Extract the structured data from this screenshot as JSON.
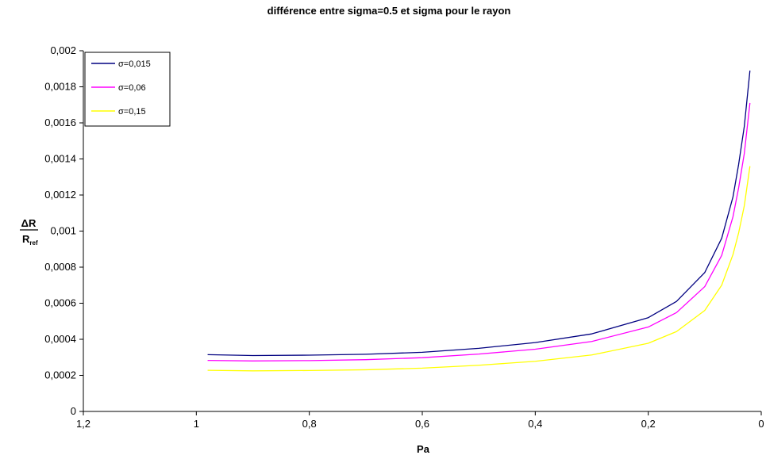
{
  "chart_data": {
    "type": "line",
    "title": "différence entre sigma=0.5 et sigma pour le rayon",
    "xlabel": "Pa",
    "ylabel": {
      "numerator": "ΔR",
      "denominator_main": "R",
      "denominator_sub": "ref"
    },
    "xlim": [
      1.2,
      0
    ],
    "ylim": [
      0,
      0.002
    ],
    "x_reversed": true,
    "x_ticks": [
      "1,2",
      "1",
      "0,8",
      "0,6",
      "0,4",
      "0,2",
      "0"
    ],
    "x_tick_values": [
      1.2,
      1.0,
      0.8,
      0.6,
      0.4,
      0.2,
      0.0
    ],
    "y_ticks": [
      "0",
      "0,0002",
      "0,0004",
      "0,0006",
      "0,0008",
      "0,001",
      "0,0012",
      "0,0014",
      "0,0016",
      "0,0018",
      "0,002"
    ],
    "y_tick_values": [
      0,
      0.0002,
      0.0004,
      0.0006,
      0.0008,
      0.001,
      0.0012,
      0.0014,
      0.0016,
      0.0018,
      0.002
    ],
    "grid": false,
    "legend_position": "top-left",
    "x": [
      0.98,
      0.9,
      0.8,
      0.7,
      0.6,
      0.5,
      0.4,
      0.3,
      0.2,
      0.15,
      0.1,
      0.07,
      0.05,
      0.04,
      0.03,
      0.02
    ],
    "series": [
      {
        "name": "σ=0,015",
        "color": "#000080",
        "values": [
          0.000315,
          0.00031,
          0.000312,
          0.000317,
          0.000328,
          0.00035,
          0.000382,
          0.00043,
          0.00052,
          0.00061,
          0.00077,
          0.00096,
          0.00119,
          0.00137,
          0.00158,
          0.00189
        ]
      },
      {
        "name": "σ=0,06",
        "color": "#ff00ff",
        "values": [
          0.000283,
          0.00028,
          0.000282,
          0.000287,
          0.000298,
          0.000318,
          0.000345,
          0.000388,
          0.000468,
          0.000548,
          0.000692,
          0.000865,
          0.00108,
          0.00124,
          0.00143,
          0.00171
        ]
      },
      {
        "name": "σ=0,15",
        "color": "#ffff00",
        "values": [
          0.000228,
          0.000225,
          0.000227,
          0.000231,
          0.00024,
          0.000256,
          0.000278,
          0.000313,
          0.000378,
          0.000443,
          0.00056,
          0.0007,
          0.00087,
          0.00099,
          0.00114,
          0.00136
        ]
      }
    ]
  }
}
